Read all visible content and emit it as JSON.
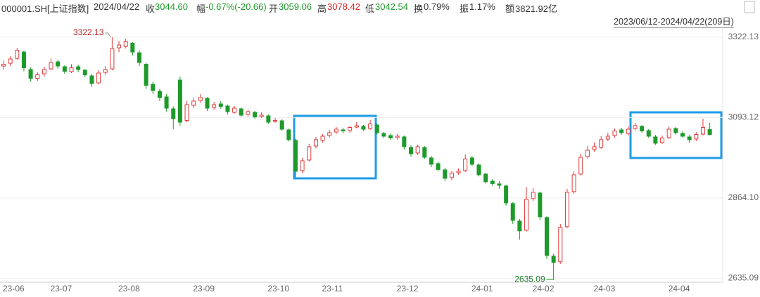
{
  "header": {
    "code": "000001.SH[上证指数]",
    "date": "2024/04/22",
    "items": [
      {
        "label": "收",
        "value": "3044.60"
      },
      {
        "label": "幅",
        "value": "-0.67%(-20.66)"
      },
      {
        "label": "开",
        "value": "3059.06"
      },
      {
        "label": "高",
        "value": "3078.42"
      },
      {
        "label": "低",
        "value": "3042.54"
      },
      {
        "label": "换",
        "value": "0.79%"
      },
      {
        "label": "振",
        "value": "1.17%"
      },
      {
        "label": "额",
        "value": "3821.92亿"
      }
    ],
    "range": "2023/06/12-2024/04/22(209日)"
  },
  "chart_data": {
    "type": "candlestick",
    "up_color": "#e03a3a",
    "down_color": "#1e9a2a",
    "ylim": [
      2623.6,
      3348.2
    ],
    "yticks": [
      {
        "value": 3322.13,
        "label": "3322.13"
      },
      {
        "value": 3093.12,
        "label": "3093.12"
      },
      {
        "value": 2864.1,
        "label": "2864.10"
      },
      {
        "value": 2635.09,
        "label": "2635.09"
      }
    ],
    "categories": [
      "23-06",
      null,
      null,
      null,
      null,
      null,
      null,
      "23-07",
      null,
      null,
      null,
      null,
      null,
      null,
      null,
      null,
      null,
      "23-08",
      null,
      null,
      null,
      null,
      null,
      null,
      null,
      null,
      null,
      null,
      "23-09",
      null,
      null,
      null,
      null,
      null,
      null,
      null,
      null,
      null,
      null,
      "23-10",
      null,
      null,
      null,
      null,
      null,
      null,
      null,
      "23-11",
      null,
      null,
      null,
      null,
      null,
      null,
      null,
      null,
      null,
      null,
      "23-12",
      null,
      null,
      null,
      null,
      null,
      null,
      null,
      null,
      null,
      null,
      "24-01",
      null,
      null,
      null,
      null,
      null,
      null,
      null,
      null,
      "24-02",
      null,
      null,
      null,
      null,
      null,
      null,
      null,
      null,
      "24-03",
      null,
      null,
      null,
      null,
      null,
      null,
      null,
      null,
      null,
      null,
      "24-04",
      null,
      null,
      null,
      null,
      null,
      null
    ],
    "candles": [
      [
        3240,
        3255,
        3230,
        3245
      ],
      [
        3248,
        3268,
        3240,
        3260
      ],
      [
        3262,
        3292,
        3258,
        3285
      ],
      [
        3280,
        3284,
        3225,
        3235
      ],
      [
        3230,
        3236,
        3195,
        3205
      ],
      [
        3205,
        3222,
        3198,
        3215
      ],
      [
        3218,
        3238,
        3210,
        3230
      ],
      [
        3232,
        3262,
        3228,
        3250
      ],
      [
        3252,
        3258,
        3232,
        3240
      ],
      [
        3238,
        3242,
        3218,
        3225
      ],
      [
        3224,
        3245,
        3220,
        3235
      ],
      [
        3238,
        3244,
        3222,
        3230
      ],
      [
        3228,
        3232,
        3208,
        3215
      ],
      [
        3212,
        3218,
        3180,
        3190
      ],
      [
        3192,
        3228,
        3188,
        3220
      ],
      [
        3222,
        3240,
        3215,
        3230
      ],
      [
        3232,
        3322.13,
        3228,
        3290
      ],
      [
        3292,
        3312,
        3280,
        3300
      ],
      [
        3296,
        3318,
        3290,
        3310
      ],
      [
        3305,
        3308,
        3270,
        3280
      ],
      [
        3278,
        3285,
        3240,
        3250
      ],
      [
        3245,
        3250,
        3175,
        3185
      ],
      [
        3188,
        3196,
        3160,
        3170
      ],
      [
        3168,
        3175,
        3140,
        3150
      ],
      [
        3152,
        3160,
        3110,
        3120
      ],
      [
        3118,
        3125,
        3060,
        3090
      ],
      [
        3200,
        3210,
        3070,
        3080
      ],
      [
        3085,
        3140,
        3080,
        3130
      ],
      [
        3128,
        3150,
        3120,
        3140
      ],
      [
        3142,
        3160,
        3135,
        3150
      ],
      [
        3148,
        3152,
        3112,
        3120
      ],
      [
        3122,
        3138,
        3115,
        3130
      ],
      [
        3132,
        3140,
        3118,
        3125
      ],
      [
        3126,
        3130,
        3102,
        3110
      ],
      [
        3108,
        3126,
        3104,
        3120
      ],
      [
        3118,
        3122,
        3095,
        3100
      ],
      [
        3102,
        3116,
        3096,
        3110
      ],
      [
        3108,
        3112,
        3090,
        3095
      ],
      [
        3096,
        3108,
        3092,
        3100
      ],
      [
        3098,
        3102,
        3075,
        3080
      ],
      [
        3082,
        3092,
        3078,
        3085
      ],
      [
        3084,
        3088,
        3055,
        3060
      ],
      [
        3058,
        3062,
        3025,
        3030
      ],
      [
        3028,
        3032,
        2923,
        2940
      ],
      [
        2942,
        2978,
        2935,
        2970
      ],
      [
        2972,
        3018,
        2968,
        3010
      ],
      [
        3012,
        3038,
        3005,
        3030
      ],
      [
        3028,
        3046,
        3022,
        3040
      ],
      [
        3042,
        3058,
        3036,
        3050
      ],
      [
        3052,
        3066,
        3046,
        3060
      ],
      [
        3058,
        3064,
        3048,
        3055
      ],
      [
        3056,
        3070,
        3050,
        3065
      ],
      [
        3066,
        3080,
        3062,
        3070
      ],
      [
        3068,
        3072,
        3055,
        3060
      ],
      [
        3062,
        3086,
        3058,
        3075
      ],
      [
        3072,
        3076,
        3045,
        3050
      ],
      [
        3048,
        3052,
        3034,
        3040
      ],
      [
        3042,
        3048,
        3030,
        3035
      ],
      [
        3036,
        3046,
        3030,
        3040
      ],
      [
        3038,
        3042,
        3002,
        3010
      ],
      [
        3008,
        3014,
        2982,
        2990
      ],
      [
        2992,
        3016,
        2986,
        3010
      ],
      [
        3008,
        3012,
        2975,
        2980
      ],
      [
        2978,
        2984,
        2952,
        2960
      ],
      [
        2962,
        2968,
        2940,
        2945
      ],
      [
        2944,
        2950,
        2912,
        2920
      ],
      [
        2922,
        2940,
        2915,
        2935
      ],
      [
        2936,
        2948,
        2930,
        2940
      ],
      [
        2942,
        2988,
        2938,
        2975
      ],
      [
        2978,
        2984,
        2955,
        2960
      ],
      [
        2958,
        2962,
        2925,
        2930
      ],
      [
        2932,
        2936,
        2905,
        2910
      ],
      [
        2912,
        2918,
        2898,
        2905
      ],
      [
        2904,
        2912,
        2890,
        2900
      ],
      [
        2898,
        2902,
        2842,
        2850
      ],
      [
        2848,
        2852,
        2790,
        2800
      ],
      [
        2798,
        2804,
        2745,
        2770
      ],
      [
        2772,
        2895,
        2768,
        2860
      ],
      [
        2862,
        2892,
        2855,
        2880
      ],
      [
        2878,
        2882,
        2800,
        2810
      ],
      [
        2808,
        2812,
        2690,
        2700
      ],
      [
        2698,
        2705,
        2635.09,
        2680
      ],
      [
        2682,
        2790,
        2676,
        2780
      ],
      [
        2782,
        2890,
        2778,
        2880
      ],
      [
        2882,
        2940,
        2876,
        2930
      ],
      [
        2932,
        2990,
        2928,
        2980
      ],
      [
        2982,
        3012,
        2976,
        3000
      ],
      [
        3002,
        3022,
        2995,
        3010
      ],
      [
        3008,
        3040,
        3004,
        3030
      ],
      [
        3032,
        3050,
        3026,
        3040
      ],
      [
        3042,
        3062,
        3036,
        3055
      ],
      [
        3058,
        3064,
        3044,
        3050
      ],
      [
        3048,
        3068,
        3042,
        3060
      ],
      [
        3062,
        3078,
        3056,
        3070
      ],
      [
        3068,
        3072,
        3050,
        3055
      ],
      [
        3056,
        3060,
        3035,
        3040
      ],
      [
        3038,
        3044,
        3015,
        3020
      ],
      [
        3022,
        3042,
        3018,
        3035
      ],
      [
        3036,
        3068,
        3032,
        3060
      ],
      [
        3062,
        3066,
        3045,
        3050
      ],
      [
        3048,
        3054,
        3035,
        3040
      ],
      [
        3038,
        3044,
        3020,
        3030
      ],
      [
        3032,
        3052,
        3026,
        3045
      ],
      [
        3046,
        3090,
        3042,
        3065
      ],
      [
        3059.06,
        3078.42,
        3042.54,
        3044.6
      ]
    ]
  }
}
